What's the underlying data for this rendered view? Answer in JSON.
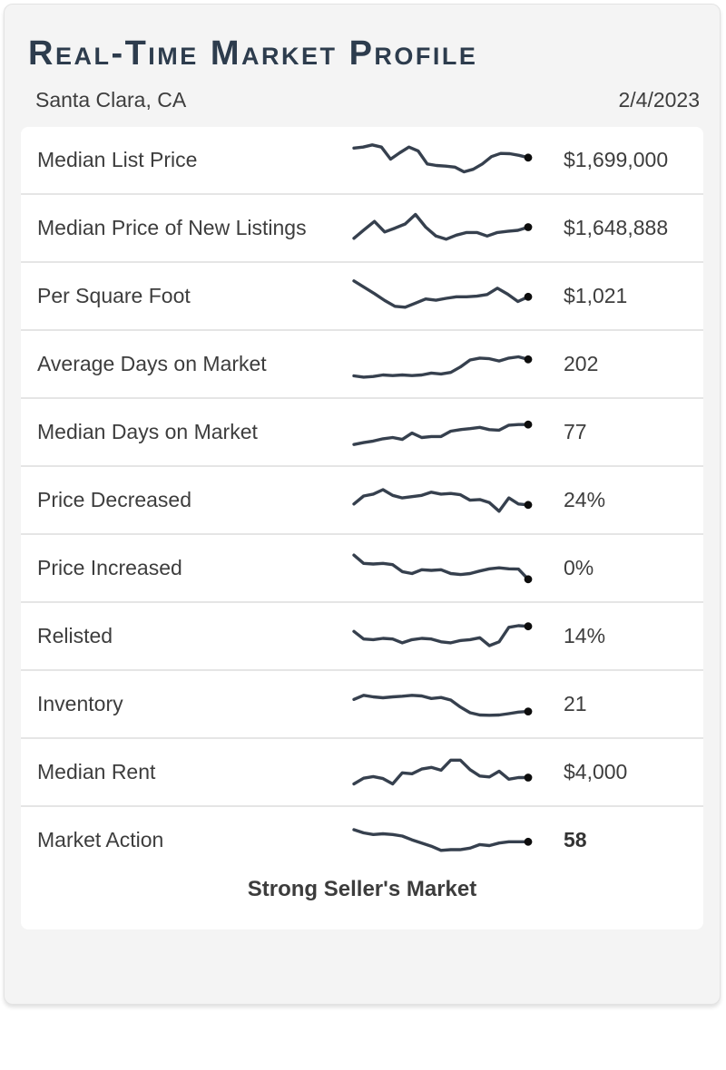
{
  "header": {
    "title": "Real-Time Market Profile",
    "location": "Santa Clara, CA",
    "date": "2/4/2023"
  },
  "footer": {
    "status": "Strong Seller's Market"
  },
  "colors": {
    "title": "#2d3c4d",
    "text": "#3d3d3d",
    "sparkline": "#36404e",
    "endpoint_dot": "#0d0d0d",
    "divider": "#e5e5e5",
    "card_bg": "#f4f4f4",
    "row_bg": "#ffffff"
  },
  "chart_data": [
    {
      "type": "line",
      "label": "Median List Price",
      "current_value": "$1,699,000",
      "bold": false,
      "trend": [
        0.85,
        0.88,
        0.95,
        0.88,
        0.5,
        0.7,
        0.88,
        0.76,
        0.35,
        0.3,
        0.28,
        0.25,
        0.1,
        0.18,
        0.35,
        0.58,
        0.68,
        0.67,
        0.62,
        0.55
      ]
    },
    {
      "type": "line",
      "label": "Median Price of New Listings",
      "current_value": "$1,648,888",
      "bold": false,
      "trend": [
        0.15,
        0.42,
        0.68,
        0.35,
        0.47,
        0.6,
        0.9,
        0.5,
        0.22,
        0.12,
        0.25,
        0.33,
        0.33,
        0.22,
        0.33,
        0.37,
        0.4,
        0.5
      ]
    },
    {
      "type": "line",
      "label": "Per Square Foot",
      "current_value": "$1,021",
      "bold": false,
      "trend": [
        0.95,
        0.75,
        0.55,
        0.33,
        0.15,
        0.12,
        0.25,
        0.38,
        0.34,
        0.4,
        0.45,
        0.45,
        0.47,
        0.52,
        0.72,
        0.53,
        0.3,
        0.45
      ]
    },
    {
      "type": "line",
      "label": "Average Days on Market",
      "current_value": "202",
      "bold": false,
      "trend": [
        0.1,
        0.06,
        0.08,
        0.13,
        0.11,
        0.13,
        0.11,
        0.13,
        0.19,
        0.16,
        0.21,
        0.38,
        0.6,
        0.66,
        0.64,
        0.57,
        0.66,
        0.7,
        0.62
      ]
    },
    {
      "type": "line",
      "label": "Median Days on Market",
      "current_value": "77",
      "bold": false,
      "trend": [
        0.08,
        0.14,
        0.19,
        0.26,
        0.3,
        0.24,
        0.44,
        0.3,
        0.33,
        0.33,
        0.5,
        0.55,
        0.58,
        0.62,
        0.55,
        0.53,
        0.69,
        0.71,
        0.71
      ]
    },
    {
      "type": "line",
      "label": "Price Decreased",
      "current_value": "24%",
      "bold": false,
      "trend": [
        0.35,
        0.6,
        0.66,
        0.8,
        0.62,
        0.54,
        0.58,
        0.62,
        0.72,
        0.66,
        0.68,
        0.64,
        0.47,
        0.49,
        0.39,
        0.12,
        0.54,
        0.35,
        0.32
      ]
    },
    {
      "type": "line",
      "label": "Price Increased",
      "current_value": "0%",
      "bold": false,
      "trend": [
        0.88,
        0.62,
        0.6,
        0.62,
        0.58,
        0.36,
        0.3,
        0.42,
        0.4,
        0.42,
        0.3,
        0.27,
        0.3,
        0.38,
        0.45,
        0.48,
        0.45,
        0.44,
        0.12
      ]
    },
    {
      "type": "line",
      "label": "Relisted",
      "current_value": "14%",
      "bold": false,
      "trend": [
        0.62,
        0.38,
        0.36,
        0.4,
        0.38,
        0.26,
        0.36,
        0.4,
        0.38,
        0.29,
        0.26,
        0.33,
        0.36,
        0.42,
        0.17,
        0.29,
        0.75,
        0.8,
        0.78
      ]
    },
    {
      "type": "line",
      "label": "Inventory",
      "current_value": "21",
      "bold": false,
      "trend": [
        0.62,
        0.75,
        0.7,
        0.67,
        0.7,
        0.72,
        0.75,
        0.73,
        0.65,
        0.68,
        0.6,
        0.38,
        0.2,
        0.13,
        0.12,
        0.13,
        0.17,
        0.22,
        0.24
      ]
    },
    {
      "type": "line",
      "label": "Median Rent",
      "current_value": "$4,000",
      "bold": false,
      "trend": [
        0.1,
        0.28,
        0.33,
        0.27,
        0.1,
        0.45,
        0.42,
        0.57,
        0.62,
        0.53,
        0.85,
        0.85,
        0.55,
        0.35,
        0.32,
        0.5,
        0.25,
        0.3,
        0.3
      ]
    },
    {
      "type": "line",
      "label": "Market Action",
      "current_value": "58",
      "bold": true,
      "trend": [
        0.8,
        0.7,
        0.65,
        0.67,
        0.65,
        0.6,
        0.48,
        0.38,
        0.28,
        0.15,
        0.17,
        0.17,
        0.22,
        0.33,
        0.3,
        0.38,
        0.42,
        0.42,
        0.42
      ]
    }
  ]
}
